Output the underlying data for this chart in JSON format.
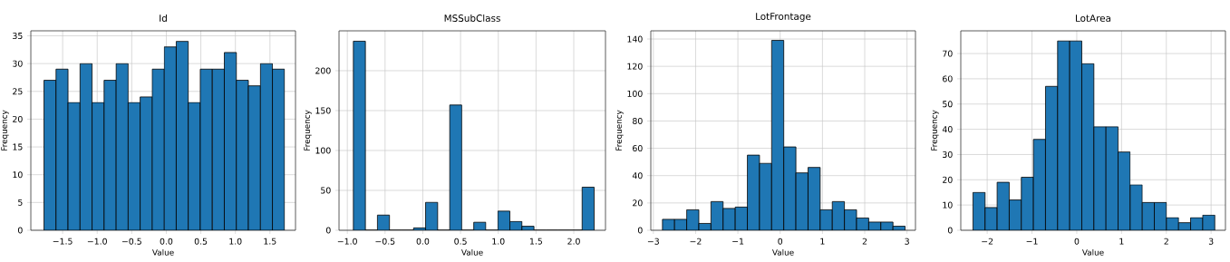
{
  "chart_data": [
    {
      "type": "histogram",
      "title": "Id",
      "xlabel": "Value",
      "ylabel": "Frequency",
      "color": "#1f77b4",
      "grid": true,
      "bins": [
        -1.77,
        -1.596,
        -1.422,
        -1.248,
        -1.074,
        -0.9,
        -0.726,
        -0.552,
        -0.378,
        -0.204,
        -0.03,
        0.144,
        0.318,
        0.492,
        0.666,
        0.84,
        1.014,
        1.188,
        1.362,
        1.536,
        1.71
      ],
      "values": [
        27,
        29,
        23,
        30,
        23,
        27,
        30,
        23,
        24,
        29,
        33,
        34,
        23,
        29,
        29,
        32,
        27,
        26,
        30,
        29
      ],
      "xlim": [
        -1.96,
        1.87
      ],
      "ylim": [
        0,
        35.9
      ],
      "xticks": [
        {
          "value": -1.5,
          "label": "−1.5"
        },
        {
          "value": -1.0,
          "label": "−1.0"
        },
        {
          "value": -0.5,
          "label": "−0.5"
        },
        {
          "value": 0,
          "label": "0.0"
        },
        {
          "value": 0.5,
          "label": "0.5"
        },
        {
          "value": 1.0,
          "label": "1.0"
        },
        {
          "value": 1.5,
          "label": "1.5"
        }
      ],
      "yticks": [
        0,
        5,
        10,
        15,
        20,
        25,
        30,
        35
      ]
    },
    {
      "type": "histogram",
      "title": "MSSubClass",
      "xlabel": "Value",
      "ylabel": "Frequency",
      "color": "#1f77b4",
      "grid": true,
      "bins": [
        -0.92,
        -0.7605,
        -0.601,
        -0.4415,
        -0.282,
        -0.1225,
        0.037,
        0.1965,
        0.356,
        0.5155,
        0.675,
        0.8345,
        0.994,
        1.1535,
        1.313,
        1.4725,
        1.632,
        1.7915,
        1.951,
        2.1105,
        2.27
      ],
      "values": [
        237,
        0,
        19,
        0,
        0,
        3,
        35,
        0,
        157,
        0,
        10,
        0,
        24,
        11,
        5,
        0,
        0,
        0,
        0,
        54
      ],
      "xlim": [
        -1.11,
        2.42
      ],
      "ylim": [
        0,
        250
      ],
      "xticks": [
        {
          "value": -1.0,
          "label": "−1.0"
        },
        {
          "value": -0.5,
          "label": "−0.5"
        },
        {
          "value": 0,
          "label": "0.0"
        },
        {
          "value": 0.5,
          "label": "0.5"
        },
        {
          "value": 1.0,
          "label": "1.0"
        },
        {
          "value": 1.5,
          "label": "1.5"
        },
        {
          "value": 2.0,
          "label": "2.0"
        }
      ],
      "yticks": [
        0,
        50,
        100,
        150,
        200
      ]
    },
    {
      "type": "histogram",
      "title": "LotFrontage",
      "xlabel": "Value",
      "ylabel": "Frequency",
      "color": "#1f77b4",
      "grid": true,
      "bins": [
        -2.785,
        -2.498,
        -2.211,
        -1.924,
        -1.637,
        -1.35,
        -1.063,
        -0.776,
        -0.489,
        -0.202,
        0.085,
        0.372,
        0.659,
        0.946,
        1.233,
        1.52,
        1.807,
        2.094,
        2.381,
        2.668,
        2.955
      ],
      "values": [
        8,
        8,
        15,
        5,
        21,
        16,
        17,
        55,
        49,
        139,
        61,
        42,
        46,
        15,
        21,
        15,
        9,
        6,
        6,
        3
      ],
      "xlim": [
        -3.06,
        3.2
      ],
      "ylim": [
        0,
        146
      ],
      "xticks": [
        {
          "value": -3,
          "label": "−3"
        },
        {
          "value": -2,
          "label": "−2"
        },
        {
          "value": -1,
          "label": "−1"
        },
        0,
        1,
        2,
        3
      ],
      "yticks": [
        0,
        20,
        40,
        60,
        80,
        100,
        120,
        140
      ]
    },
    {
      "type": "histogram",
      "title": "LotArea",
      "xlabel": "Value",
      "ylabel": "Frequency",
      "color": "#1f77b4",
      "grid": true,
      "bins": [
        -2.318,
        -2.048,
        -1.778,
        -1.508,
        -1.238,
        -0.968,
        -0.698,
        -0.428,
        -0.158,
        0.112,
        0.382,
        0.652,
        0.922,
        1.192,
        1.462,
        1.732,
        2.002,
        2.272,
        2.542,
        2.812,
        3.082
      ],
      "values": [
        15,
        9,
        19,
        12,
        21,
        36,
        57,
        75,
        75,
        66,
        41,
        41,
        31,
        18,
        11,
        11,
        5,
        3,
        5,
        6
      ],
      "xlim": [
        -2.59,
        3.32
      ],
      "ylim": [
        0,
        79
      ],
      "xticks": [
        {
          "value": -2,
          "label": "−2"
        },
        {
          "value": -1,
          "label": "−1"
        },
        0,
        1,
        2,
        3
      ],
      "yticks": [
        0,
        10,
        20,
        30,
        40,
        50,
        60,
        70
      ]
    }
  ]
}
